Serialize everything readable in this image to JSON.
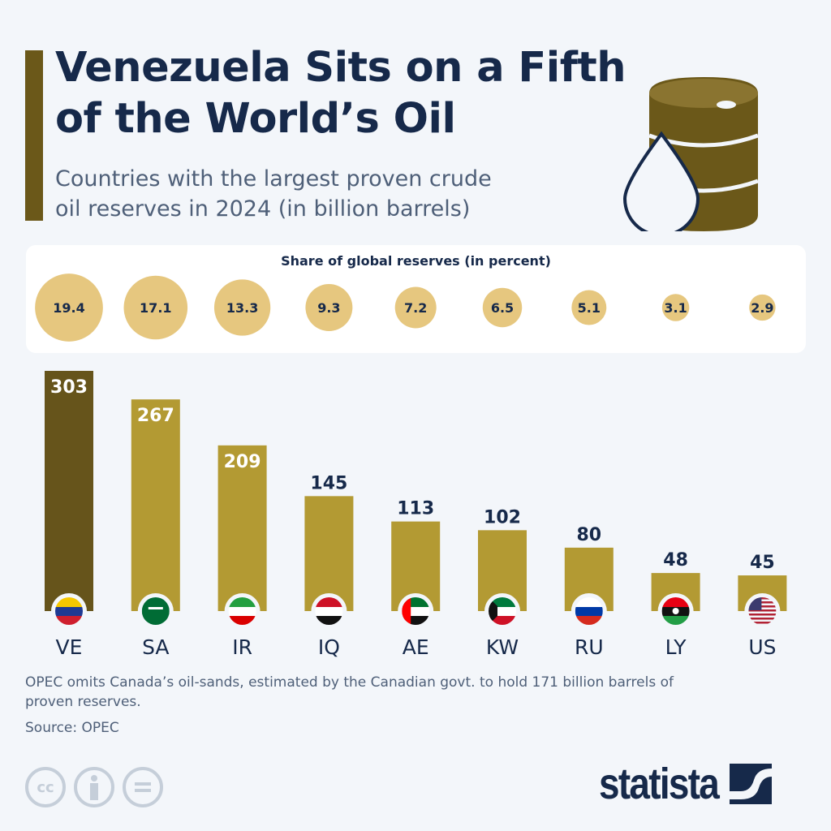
{
  "header": {
    "title_line1": "Venezuela Sits on a Fifth",
    "title_line2": "of the World’s Oil",
    "subtitle_line1": "Countries with the largest proven crude",
    "subtitle_line2": "oil reserves in 2024 (in billion barrels)"
  },
  "share_panel": {
    "title": "Share of global reserves (in percent)"
  },
  "chart_data": {
    "type": "bar",
    "categories": [
      "VE",
      "SA",
      "IR",
      "IQ",
      "AE",
      "KW",
      "RU",
      "LY",
      "US"
    ],
    "values": [
      303,
      267,
      209,
      145,
      113,
      102,
      80,
      48,
      45
    ],
    "share_percent": [
      19.4,
      17.1,
      13.3,
      9.3,
      7.2,
      6.5,
      5.1,
      3.1,
      2.9
    ],
    "ylim": [
      0,
      303
    ],
    "highlight_color": "#66541b",
    "bar_color": "#b39a33",
    "bubble_color": "#e6c77f"
  },
  "footer": {
    "note_line1": "OPEC omits Canada’s oil-sands, estimated by the Canadian govt. to hold 171 billion barrels of",
    "note_line2": "proven reserves.",
    "source": "Source: OPEC",
    "license_icons": [
      "cc-icon",
      "attribution-icon",
      "no-derivatives-icon"
    ],
    "cc_text": "cc",
    "logo": "statista"
  }
}
